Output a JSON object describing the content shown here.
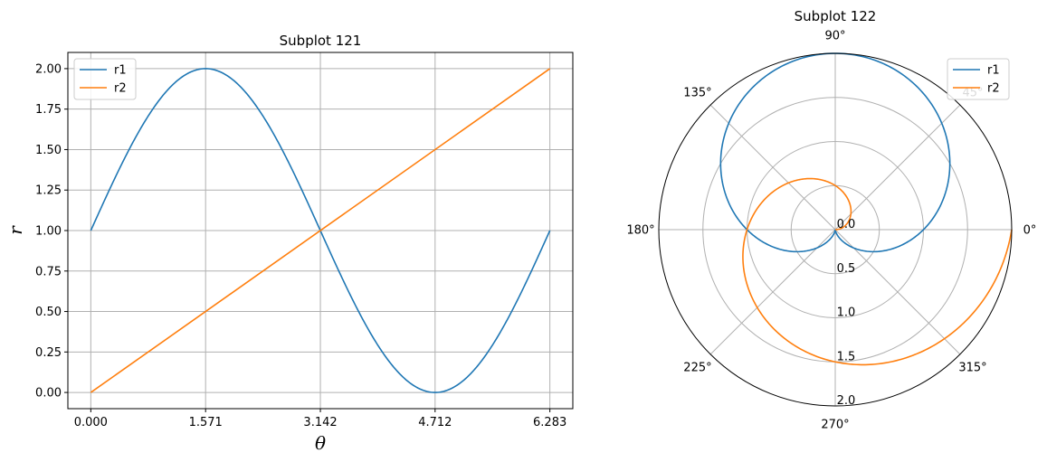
{
  "chart_data": [
    {
      "id": "subplot-121",
      "type": "line",
      "title": "Subplot 121",
      "xlabel": "θ",
      "ylabel": "r",
      "xlim": [
        -0.314,
        6.597
      ],
      "ylim": [
        -0.1,
        2.1
      ],
      "xticks": [
        0,
        1.571,
        3.142,
        4.712,
        6.283
      ],
      "xtick_labels": [
        "0.000",
        "1.571",
        "3.142",
        "4.712",
        "6.283"
      ],
      "yticks": [
        0,
        0.25,
        0.5,
        0.75,
        1.0,
        1.25,
        1.5,
        1.75,
        2.0
      ],
      "ytick_labels": [
        "0.00",
        "0.25",
        "0.50",
        "0.75",
        "1.00",
        "1.25",
        "1.50",
        "1.75",
        "2.00"
      ],
      "grid": true,
      "legend_position": "top-left",
      "series": [
        {
          "name": "r1",
          "color": "#1f77b4",
          "x": [
            0,
            0.393,
            0.785,
            1.178,
            1.571,
            1.963,
            2.356,
            2.749,
            3.142,
            3.534,
            3.927,
            4.32,
            4.712,
            5.105,
            5.498,
            5.89,
            6.283
          ],
          "y": [
            1.0,
            1.383,
            1.707,
            1.924,
            2.0,
            1.924,
            1.707,
            1.383,
            1.0,
            0.617,
            0.293,
            0.076,
            0.0,
            0.076,
            0.293,
            0.617,
            1.0
          ]
        },
        {
          "name": "r2",
          "color": "#ff7f0e",
          "x": [
            0,
            6.283
          ],
          "y": [
            0.0,
            2.0
          ]
        }
      ]
    },
    {
      "id": "subplot-122",
      "type": "line",
      "projection": "polar",
      "title": "Subplot 122",
      "rlim": [
        0,
        2.0
      ],
      "rticks": [
        0.0,
        0.5,
        1.0,
        1.5,
        2.0
      ],
      "rtick_labels": [
        "0.0",
        "0.5",
        "1.0",
        "1.5",
        "2.0"
      ],
      "angle_ticks": [
        0,
        45,
        90,
        135,
        180,
        225,
        270,
        315
      ],
      "angle_tick_labels": [
        "0°",
        "45°",
        "90°",
        "135°",
        "180°",
        "225°",
        "270°",
        "315°"
      ],
      "grid": true,
      "legend_position": "top-right",
      "series": [
        {
          "name": "r1",
          "color": "#1f77b4",
          "theta": [
            0,
            0.393,
            0.785,
            1.178,
            1.571,
            1.963,
            2.356,
            2.749,
            3.142,
            3.534,
            3.927,
            4.32,
            4.712,
            5.105,
            5.498,
            5.89,
            6.283
          ],
          "r": [
            1.0,
            1.383,
            1.707,
            1.924,
            2.0,
            1.924,
            1.707,
            1.383,
            1.0,
            0.617,
            0.293,
            0.076,
            0.0,
            0.076,
            0.293,
            0.617,
            1.0
          ]
        },
        {
          "name": "r2",
          "color": "#ff7f0e",
          "theta": [
            0,
            0.785,
            1.571,
            2.356,
            3.142,
            3.927,
            4.712,
            5.498,
            6.283
          ],
          "r": [
            0.0,
            0.25,
            0.5,
            0.75,
            1.0,
            1.25,
            1.5,
            1.75,
            2.0
          ]
        }
      ]
    }
  ]
}
